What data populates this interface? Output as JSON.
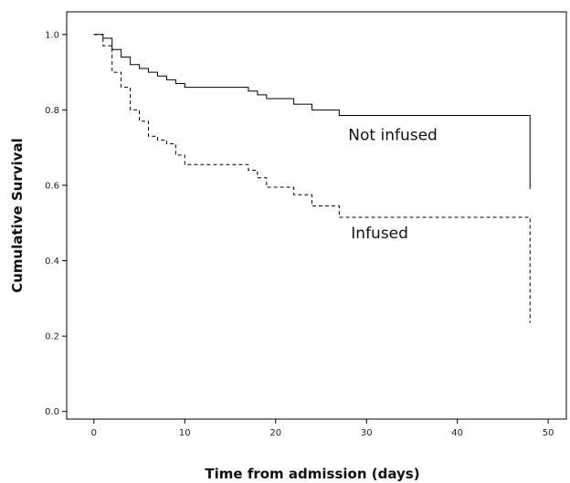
{
  "chart_data": {
    "type": "line",
    "title": "",
    "xlabel": "Time from admission (days)",
    "ylabel": "Cumulative Survival",
    "xlim": [
      -3,
      52
    ],
    "ylim": [
      -0.02,
      1.06
    ],
    "x_ticks": [
      0,
      10,
      20,
      30,
      40,
      50
    ],
    "x_tick_labels": [
      "0",
      "10",
      "20",
      "30",
      "40",
      "50"
    ],
    "y_ticks": [
      0.0,
      0.2,
      0.4,
      0.6,
      0.8,
      1.0
    ],
    "y_tick_labels": [
      "0.0",
      "0.2",
      "0.4",
      "0.6",
      "0.8",
      "1.0"
    ],
    "grid": false,
    "step": true,
    "series": [
      {
        "name": "Not infused",
        "line_style": "solid",
        "color": "#000000",
        "x": [
          0,
          1,
          2,
          3,
          4,
          5,
          6,
          7,
          8,
          9,
          10,
          17,
          18,
          19,
          22,
          24,
          27,
          48,
          48
        ],
        "y": [
          1.0,
          0.99,
          0.96,
          0.94,
          0.92,
          0.91,
          0.9,
          0.89,
          0.88,
          0.87,
          0.86,
          0.85,
          0.84,
          0.83,
          0.815,
          0.8,
          0.785,
          0.785,
          0.59
        ]
      },
      {
        "name": "Infused",
        "line_style": "dashed",
        "color": "#000000",
        "x": [
          0,
          1,
          2,
          3,
          4,
          5,
          6,
          7,
          8,
          9,
          10,
          17,
          18,
          19,
          22,
          24,
          27,
          48,
          48
        ],
        "y": [
          1.0,
          0.97,
          0.9,
          0.86,
          0.8,
          0.77,
          0.73,
          0.72,
          0.71,
          0.68,
          0.655,
          0.64,
          0.62,
          0.595,
          0.575,
          0.545,
          0.515,
          0.515,
          0.235
        ]
      }
    ],
    "annotations": [
      {
        "text": "Not infused",
        "x": 28,
        "y": 0.72
      },
      {
        "text": "Infused",
        "x": 28.3,
        "y": 0.46
      }
    ]
  }
}
